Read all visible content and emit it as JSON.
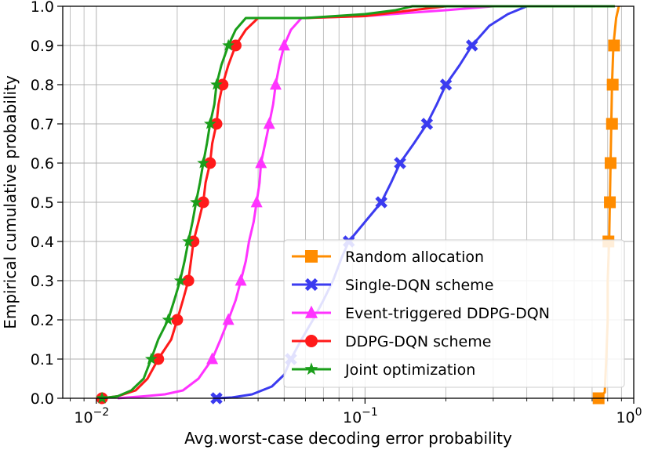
{
  "chart_data": {
    "type": "line",
    "title": "",
    "xlabel": "Avg.worst-case decoding error probability",
    "ylabel": "Empirical cumulative probability",
    "xscale": "log",
    "xlim": [
      0.0075,
      1.0
    ],
    "ylim": [
      0.0,
      1.0
    ],
    "grid": true,
    "legend_position": "lower-right",
    "x_tick_labels": [
      {
        "value": 0.01,
        "base": "10",
        "exp": "−2"
      },
      {
        "value": 0.1,
        "base": "10",
        "exp": "−1"
      },
      {
        "value": 1.0,
        "base": "10",
        "exp": "0"
      }
    ],
    "y_ticks": [
      0.0,
      0.1,
      0.2,
      0.3,
      0.4,
      0.5,
      0.6,
      0.7,
      0.8,
      0.9,
      1.0
    ],
    "y_tick_labels": [
      "0.0",
      "0.1",
      "0.2",
      "0.3",
      "0.4",
      "0.5",
      "0.6",
      "0.7",
      "0.8",
      "0.9",
      "1.0"
    ],
    "series": [
      {
        "name": "Random allocation",
        "color": "#ff8c00",
        "marker": "square",
        "points": [
          [
            0.74,
            0.0
          ],
          [
            0.75,
            0.005
          ],
          [
            0.78,
            0.015
          ],
          [
            0.79,
            0.1
          ],
          [
            0.8,
            0.2
          ],
          [
            0.8,
            0.3
          ],
          [
            0.81,
            0.4
          ],
          [
            0.815,
            0.5
          ],
          [
            0.82,
            0.6
          ],
          [
            0.825,
            0.7
          ],
          [
            0.83,
            0.8
          ],
          [
            0.84,
            0.9
          ],
          [
            0.86,
            0.97
          ],
          [
            0.88,
            1.0
          ]
        ],
        "markers": [
          [
            0.74,
            0.0
          ],
          [
            0.805,
            0.4
          ],
          [
            0.815,
            0.5
          ],
          [
            0.82,
            0.6
          ],
          [
            0.83,
            0.7
          ],
          [
            0.835,
            0.8
          ],
          [
            0.845,
            0.9
          ]
        ]
      },
      {
        "name": "Single-DQN scheme",
        "color": "#3b3bf0",
        "marker": "x",
        "points": [
          [
            0.028,
            0.0
          ],
          [
            0.032,
            0.002
          ],
          [
            0.038,
            0.01
          ],
          [
            0.045,
            0.03
          ],
          [
            0.05,
            0.06
          ],
          [
            0.053,
            0.1
          ],
          [
            0.058,
            0.15
          ],
          [
            0.064,
            0.2
          ],
          [
            0.07,
            0.25
          ],
          [
            0.076,
            0.3
          ],
          [
            0.082,
            0.36
          ],
          [
            0.087,
            0.4
          ],
          [
            0.1,
            0.45
          ],
          [
            0.115,
            0.5
          ],
          [
            0.125,
            0.55
          ],
          [
            0.135,
            0.6
          ],
          [
            0.152,
            0.65
          ],
          [
            0.17,
            0.7
          ],
          [
            0.185,
            0.75
          ],
          [
            0.2,
            0.8
          ],
          [
            0.225,
            0.85
          ],
          [
            0.25,
            0.9
          ],
          [
            0.29,
            0.95
          ],
          [
            0.34,
            0.98
          ],
          [
            0.4,
            1.0
          ],
          [
            0.85,
            1.0
          ]
        ],
        "markers": [
          [
            0.028,
            0.0
          ],
          [
            0.053,
            0.1
          ],
          [
            0.087,
            0.4
          ],
          [
            0.115,
            0.5
          ],
          [
            0.135,
            0.6
          ],
          [
            0.17,
            0.7
          ],
          [
            0.2,
            0.8
          ],
          [
            0.25,
            0.9
          ]
        ]
      },
      {
        "name": "Event-triggered DDPG-DQN",
        "color": "#ff33ff",
        "marker": "triangle",
        "points": [
          [
            0.012,
            0.0
          ],
          [
            0.015,
            0.005
          ],
          [
            0.018,
            0.01
          ],
          [
            0.021,
            0.02
          ],
          [
            0.024,
            0.05
          ],
          [
            0.027,
            0.1
          ],
          [
            0.029,
            0.15
          ],
          [
            0.031,
            0.2
          ],
          [
            0.033,
            0.25
          ],
          [
            0.0345,
            0.3
          ],
          [
            0.036,
            0.35
          ],
          [
            0.037,
            0.4
          ],
          [
            0.0385,
            0.45
          ],
          [
            0.0395,
            0.5
          ],
          [
            0.0405,
            0.55
          ],
          [
            0.041,
            0.6
          ],
          [
            0.0425,
            0.65
          ],
          [
            0.044,
            0.7
          ],
          [
            0.0455,
            0.75
          ],
          [
            0.0465,
            0.8
          ],
          [
            0.048,
            0.85
          ],
          [
            0.05,
            0.9
          ],
          [
            0.053,
            0.94
          ],
          [
            0.058,
            0.97
          ],
          [
            0.1,
            0.975
          ],
          [
            0.2,
            0.99
          ],
          [
            0.3,
            1.0
          ],
          [
            0.85,
            1.0
          ]
        ],
        "markers": [
          [
            0.027,
            0.1
          ],
          [
            0.031,
            0.2
          ],
          [
            0.0345,
            0.3
          ],
          [
            0.0395,
            0.5
          ],
          [
            0.041,
            0.6
          ],
          [
            0.044,
            0.7
          ],
          [
            0.0465,
            0.8
          ],
          [
            0.05,
            0.9
          ]
        ]
      },
      {
        "name": "DDPG-DQN scheme",
        "color": "#ff1a1a",
        "marker": "circle",
        "points": [
          [
            0.0105,
            0.0
          ],
          [
            0.012,
            0.005
          ],
          [
            0.014,
            0.02
          ],
          [
            0.0155,
            0.05
          ],
          [
            0.017,
            0.1
          ],
          [
            0.019,
            0.15
          ],
          [
            0.02,
            0.2
          ],
          [
            0.021,
            0.25
          ],
          [
            0.022,
            0.3
          ],
          [
            0.0225,
            0.35
          ],
          [
            0.023,
            0.4
          ],
          [
            0.024,
            0.45
          ],
          [
            0.025,
            0.5
          ],
          [
            0.0255,
            0.55
          ],
          [
            0.0265,
            0.6
          ],
          [
            0.027,
            0.65
          ],
          [
            0.028,
            0.7
          ],
          [
            0.0285,
            0.75
          ],
          [
            0.0295,
            0.8
          ],
          [
            0.031,
            0.85
          ],
          [
            0.033,
            0.9
          ],
          [
            0.036,
            0.94
          ],
          [
            0.04,
            0.97
          ],
          [
            0.06,
            0.97
          ],
          [
            0.1,
            0.975
          ],
          [
            0.15,
            0.99
          ],
          [
            0.2,
            1.0
          ],
          [
            0.85,
            1.0
          ]
        ],
        "markers": [
          [
            0.0105,
            0.0
          ],
          [
            0.017,
            0.1
          ],
          [
            0.02,
            0.2
          ],
          [
            0.022,
            0.3
          ],
          [
            0.023,
            0.4
          ],
          [
            0.025,
            0.5
          ],
          [
            0.0265,
            0.6
          ],
          [
            0.028,
            0.7
          ],
          [
            0.0295,
            0.8
          ],
          [
            0.033,
            0.9
          ]
        ]
      },
      {
        "name": "Joint optimization",
        "color": "#1a9e1a",
        "marker": "star",
        "points": [
          [
            0.0105,
            0.0
          ],
          [
            0.012,
            0.005
          ],
          [
            0.0135,
            0.02
          ],
          [
            0.015,
            0.05
          ],
          [
            0.016,
            0.1
          ],
          [
            0.017,
            0.15
          ],
          [
            0.0185,
            0.2
          ],
          [
            0.0195,
            0.25
          ],
          [
            0.0205,
            0.3
          ],
          [
            0.0213,
            0.35
          ],
          [
            0.022,
            0.4
          ],
          [
            0.0228,
            0.45
          ],
          [
            0.0235,
            0.5
          ],
          [
            0.0243,
            0.55
          ],
          [
            0.025,
            0.6
          ],
          [
            0.0258,
            0.65
          ],
          [
            0.0265,
            0.7
          ],
          [
            0.0275,
            0.75
          ],
          [
            0.028,
            0.8
          ],
          [
            0.0292,
            0.85
          ],
          [
            0.031,
            0.9
          ],
          [
            0.033,
            0.94
          ],
          [
            0.036,
            0.97
          ],
          [
            0.06,
            0.97
          ],
          [
            0.1,
            0.98
          ],
          [
            0.13,
            0.99
          ],
          [
            0.15,
            1.0
          ],
          [
            0.85,
            1.0
          ]
        ],
        "markers": [
          [
            0.0105,
            0.0
          ],
          [
            0.016,
            0.1
          ],
          [
            0.0185,
            0.2
          ],
          [
            0.0205,
            0.3
          ],
          [
            0.022,
            0.4
          ],
          [
            0.0235,
            0.5
          ],
          [
            0.025,
            0.6
          ],
          [
            0.0265,
            0.7
          ],
          [
            0.028,
            0.8
          ],
          [
            0.031,
            0.9
          ]
        ]
      }
    ]
  }
}
